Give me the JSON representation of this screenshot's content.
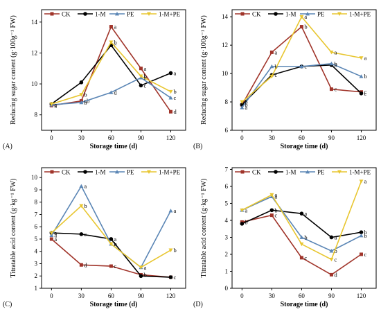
{
  "chart_data": [
    {
      "panel_label": "(A)",
      "type": "line",
      "xlabel": "Storage time (d)",
      "ylabel": "Reducing sugar content (g·100g⁻¹ FW)",
      "x": [
        0,
        30,
        60,
        90,
        120
      ],
      "xlim": [
        -10,
        135
      ],
      "ylim": [
        7,
        14.8
      ],
      "yticks": [
        8,
        10,
        12,
        14
      ],
      "legend_position": "top",
      "series": [
        {
          "name": "CK",
          "color": "#a0342a",
          "marker": "square",
          "values": [
            8.6,
            8.9,
            13.7,
            11.0,
            8.2
          ],
          "letters": [
            "a",
            "ab",
            "a",
            "a",
            "d"
          ]
        },
        {
          "name": "1-M",
          "color": "#000000",
          "marker": "circle",
          "values": [
            8.7,
            10.1,
            12.5,
            9.9,
            10.7
          ],
          "letters": [
            "",
            "",
            "c",
            "c",
            "a"
          ]
        },
        {
          "name": "PE",
          "color": "#5b86b5",
          "marker": "triangle-up",
          "values": [
            8.65,
            8.8,
            9.45,
            10.4,
            9.1
          ],
          "letters": [
            "a",
            "b",
            "d",
            "b",
            "c"
          ]
        },
        {
          "name": "1-M+PE",
          "color": "#e8c630",
          "marker": "triangle-down",
          "values": [
            8.7,
            9.3,
            12.7,
            10.5,
            9.5
          ],
          "letters": [
            "",
            "b",
            "b",
            "b",
            "b"
          ]
        }
      ]
    },
    {
      "panel_label": "(B)",
      "type": "line",
      "xlabel": "Storage time (d)",
      "ylabel": "Reducing sugar content (g·100g⁻¹ FW)",
      "x": [
        0,
        30,
        60,
        90,
        120
      ],
      "xlim": [
        -10,
        135
      ],
      "ylim": [
        6,
        14.5
      ],
      "yticks": [
        6,
        8,
        10,
        12,
        14
      ],
      "legend_position": "top",
      "series": [
        {
          "name": "CK",
          "color": "#a0342a",
          "marker": "square",
          "values": [
            7.8,
            11.5,
            13.3,
            8.9,
            8.7
          ],
          "letters": [
            "b",
            "a",
            "b",
            "c",
            "c"
          ]
        },
        {
          "name": "1-M",
          "color": "#000000",
          "marker": "circle",
          "values": [
            7.8,
            9.9,
            10.5,
            10.6,
            8.6
          ],
          "letters": [
            "",
            "c",
            "c",
            "b",
            "c"
          ]
        },
        {
          "name": "PE",
          "color": "#5b86b5",
          "marker": "triangle-up",
          "values": [
            7.6,
            10.5,
            10.5,
            10.7,
            9.8
          ],
          "letters": [
            "a",
            "b",
            "",
            "b",
            "b"
          ]
        },
        {
          "name": "1-M+PE",
          "color": "#e8c630",
          "marker": "triangle-down",
          "values": [
            8.0,
            9.8,
            14.0,
            11.5,
            11.1
          ],
          "letters": [
            "b",
            "",
            "a",
            "a",
            "a"
          ]
        }
      ]
    },
    {
      "panel_label": "(C)",
      "type": "line",
      "xlabel": "Storage time (d)",
      "ylabel": "Titratable acid content (g·kg⁻¹ FW)",
      "x": [
        0,
        30,
        60,
        90,
        120
      ],
      "xlim": [
        -10,
        135
      ],
      "ylim": [
        1,
        10.8
      ],
      "yticks": [
        1,
        2,
        3,
        4,
        5,
        6,
        7,
        8,
        9,
        10
      ],
      "legend_position": "top",
      "series": [
        {
          "name": "CK",
          "color": "#a0342a",
          "marker": "square",
          "values": [
            5.0,
            2.9,
            2.8,
            2.1,
            1.9
          ],
          "letters": [
            "a",
            "d",
            "c",
            "b",
            "c"
          ]
        },
        {
          "name": "1-M",
          "color": "#000000",
          "marker": "circle",
          "values": [
            5.5,
            5.4,
            5.0,
            2.0,
            1.9
          ],
          "letters": [
            "",
            "c",
            "a",
            "",
            ""
          ]
        },
        {
          "name": "PE",
          "color": "#5b86b5",
          "marker": "triangle-up",
          "values": [
            5.3,
            9.3,
            4.6,
            2.7,
            7.3
          ],
          "letters": [
            "a",
            "a",
            "b",
            "a",
            "a"
          ]
        },
        {
          "name": "1-M+PE",
          "color": "#e8c630",
          "marker": "triangle-down",
          "values": [
            5.5,
            7.7,
            4.6,
            2.7,
            4.1
          ],
          "letters": [
            "a",
            "b",
            "b",
            "",
            "b"
          ]
        }
      ]
    },
    {
      "panel_label": "(D)",
      "type": "line",
      "xlabel": "Storage time (d)",
      "ylabel": "Titratable acid content (g·kg⁻¹ FW)",
      "x": [
        0,
        30,
        60,
        90,
        120
      ],
      "xlim": [
        -10,
        135
      ],
      "ylim": [
        0,
        7.1
      ],
      "yticks": [
        0,
        1,
        2,
        3,
        4,
        5,
        6,
        7
      ],
      "legend_position": "top",
      "series": [
        {
          "name": "CK",
          "color": "#a0342a",
          "marker": "square",
          "values": [
            3.9,
            4.3,
            1.8,
            0.8,
            2.0
          ],
          "letters": [
            "b",
            "c",
            "c",
            "d",
            "c"
          ]
        },
        {
          "name": "1-M",
          "color": "#000000",
          "marker": "circle",
          "values": [
            3.8,
            4.6,
            4.4,
            3.0,
            3.3
          ],
          "letters": [
            "",
            "b",
            "a",
            "a",
            "b"
          ]
        },
        {
          "name": "PE",
          "color": "#5b86b5",
          "marker": "triangle-up",
          "values": [
            4.6,
            5.4,
            3.0,
            2.2,
            3.1
          ],
          "letters": [
            "a",
            "a",
            "b",
            "b",
            "b"
          ]
        },
        {
          "name": "1-M+PE",
          "color": "#e8c630",
          "marker": "triangle-down",
          "values": [
            4.6,
            5.5,
            2.6,
            1.7,
            6.3
          ],
          "letters": [
            "",
            "a",
            "",
            "c",
            "a"
          ]
        }
      ]
    }
  ]
}
